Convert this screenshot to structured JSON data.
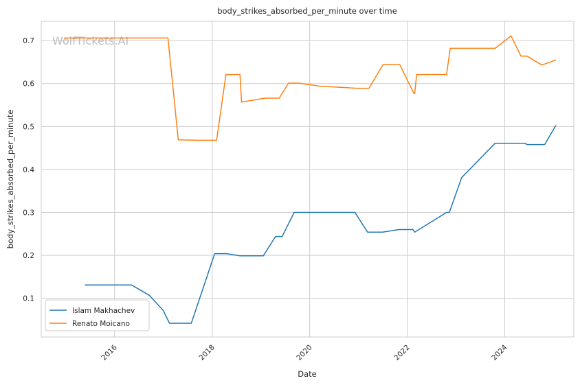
{
  "chart_data": {
    "type": "line",
    "title": "body_strikes_absorbed_per_minute over time",
    "xlabel": "Date",
    "ylabel": "body_strikes_absorbed_per_minute",
    "watermark": "WolfTickets.AI",
    "x_ticks": [
      "2016",
      "2018",
      "2020",
      "2022",
      "2024"
    ],
    "y_ticks": [
      "0.1",
      "0.2",
      "0.3",
      "0.4",
      "0.5",
      "0.6",
      "0.7"
    ],
    "xlim": [
      "2014-07-01",
      "2025-06-01"
    ],
    "ylim": [
      0.01,
      0.745
    ],
    "grid": true,
    "legend_position": "lower-left",
    "series": [
      {
        "name": "Islam Makhachev",
        "color": "#1f77b4",
        "points": [
          [
            "2015-05-23",
            0.131
          ],
          [
            "2016-05-08",
            0.131
          ],
          [
            "2016-09-17",
            0.107
          ],
          [
            "2016-12-30",
            0.072
          ],
          [
            "2017-02-15",
            0.042
          ],
          [
            "2017-07-29",
            0.042
          ],
          [
            "2018-01-20",
            0.204
          ],
          [
            "2018-04-21",
            0.204
          ],
          [
            "2018-07-28",
            0.199
          ],
          [
            "2019-01-19",
            0.199
          ],
          [
            "2019-04-20",
            0.244
          ],
          [
            "2019-06-09",
            0.244
          ],
          [
            "2019-09-07",
            0.3
          ],
          [
            "2020-12-05",
            0.3
          ],
          [
            "2021-03-10",
            0.254
          ],
          [
            "2021-07-01",
            0.254
          ],
          [
            "2021-10-30",
            0.26
          ],
          [
            "2022-02-12",
            0.26
          ],
          [
            "2022-02-26",
            0.254
          ],
          [
            "2022-10-22",
            0.3
          ],
          [
            "2022-11-12",
            0.3
          ],
          [
            "2023-02-12",
            0.381
          ],
          [
            "2023-10-21",
            0.461
          ],
          [
            "2024-03-01",
            0.461
          ],
          [
            "2024-06-01",
            0.461
          ],
          [
            "2024-06-15",
            0.458
          ],
          [
            "2024-10-26",
            0.458
          ],
          [
            "2025-01-18",
            0.503
          ]
        ]
      },
      {
        "name": "Renato Moicano",
        "color": "#ff7f0e",
        "points": [
          [
            "2014-12-20",
            0.706
          ],
          [
            "2015-05-30",
            0.706
          ],
          [
            "2017-02-04",
            0.706
          ],
          [
            "2017-04-22",
            0.469
          ],
          [
            "2017-09-16",
            0.468
          ],
          [
            "2018-02-03",
            0.468
          ],
          [
            "2018-04-14",
            0.621
          ],
          [
            "2018-07-28",
            0.621
          ],
          [
            "2018-08-09",
            0.557
          ],
          [
            "2019-02-02",
            0.566
          ],
          [
            "2019-05-18",
            0.566
          ],
          [
            "2019-07-27",
            0.601
          ],
          [
            "2019-10-12",
            0.601
          ],
          [
            "2020-03-14",
            0.594
          ],
          [
            "2020-12-19",
            0.589
          ],
          [
            "2021-03-20",
            0.589
          ],
          [
            "2021-07-03",
            0.644
          ],
          [
            "2021-11-06",
            0.644
          ],
          [
            "2022-02-19",
            0.577
          ],
          [
            "2022-02-26",
            0.577
          ],
          [
            "2022-03-12",
            0.621
          ],
          [
            "2022-10-22",
            0.621
          ],
          [
            "2022-11-19",
            0.682
          ],
          [
            "2023-10-21",
            0.682
          ],
          [
            "2024-02-17",
            0.711
          ],
          [
            "2024-05-01",
            0.664
          ],
          [
            "2024-06-15",
            0.664
          ],
          [
            "2024-10-05",
            0.643
          ],
          [
            "2025-01-18",
            0.655
          ]
        ]
      }
    ]
  }
}
